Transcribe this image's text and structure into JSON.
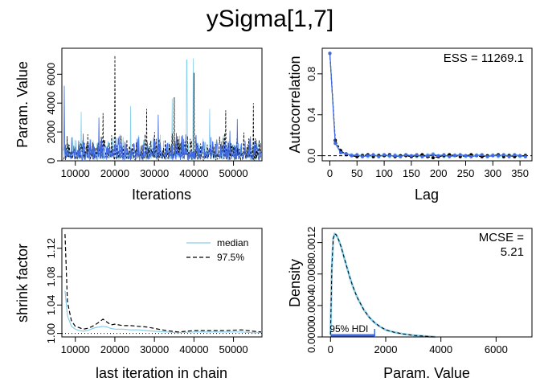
{
  "title": "ySigma[1,7]",
  "colors": {
    "chain1": "#87CEEB",
    "chain2": "#000000",
    "chain3": "#4169E1",
    "axis": "#000000",
    "hdi": "#4169E1"
  },
  "chart_data": [
    {
      "panel": "trace",
      "type": "line",
      "xlabel": "Iterations",
      "ylabel": "Param. Value",
      "x_ticks": [
        10000,
        20000,
        30000,
        40000,
        50000
      ],
      "y_ticks": [
        0,
        2000,
        4000,
        6000
      ],
      "xlim": [
        6600,
        57200
      ],
      "ylim": [
        0,
        7800
      ],
      "x_range": [
        7000,
        57000
      ],
      "series": [
        {
          "color": "#87CEEB",
          "spikes": [
            [
              38200,
              7000
            ],
            [
              39800,
              7100
            ],
            [
              34500,
              4300
            ],
            [
              24000,
              3800
            ],
            [
              11500,
              3400
            ],
            [
              44000,
              3600
            ]
          ]
        },
        {
          "color": "#000000",
          "spikes": [
            [
              20000,
              7300
            ],
            [
              40000,
              6100
            ],
            [
              35000,
              4400
            ],
            [
              55000,
              4000
            ],
            [
              48000,
              3500
            ],
            [
              17000,
              3300
            ],
            [
              28000,
              3600
            ]
          ]
        },
        {
          "color": "#4169E1",
          "spikes": [
            [
              7200,
              5200
            ],
            [
              16000,
              3000
            ],
            [
              31000,
              3200
            ],
            [
              51000,
              2900
            ]
          ]
        }
      ],
      "band_typical_max": 1900
    },
    {
      "panel": "autocorrelation",
      "type": "line",
      "xlabel": "Lag",
      "ylabel": "Autocorrelation",
      "annotation": "ESS = 11269.1",
      "x_ticks": [
        0,
        50,
        100,
        150,
        200,
        250,
        300,
        350
      ],
      "y_ticks": [
        0.0,
        0.4,
        0.8
      ],
      "y_tick_labels": [
        "0.0",
        "0.4",
        "0.8"
      ],
      "xlim": [
        -14,
        372
      ],
      "ylim": [
        -0.05,
        1.05
      ],
      "lags": [
        0,
        10,
        20,
        30,
        40,
        50,
        60,
        70,
        80,
        90,
        100,
        110,
        120,
        130,
        140,
        150,
        160,
        170,
        180,
        190,
        200,
        210,
        220,
        230,
        240,
        250,
        260,
        270,
        280,
        290,
        300,
        310,
        320,
        330,
        340,
        350,
        360
      ],
      "series": [
        {
          "color": "#87CEEB",
          "values": [
            1.0,
            0.13,
            0.04,
            0.02,
            0.01,
            0.0,
            0.01,
            -0.01,
            0.0,
            0.01,
            0.0,
            -0.01,
            0.01,
            0.0,
            0.01,
            0.0,
            -0.01,
            0.0,
            0.01,
            0.02,
            0.0,
            -0.01,
            0.0,
            0.01,
            0.0,
            -0.01,
            0.0,
            0.01,
            0.0,
            0.0,
            0.01,
            -0.01,
            0.0,
            0.01,
            0.0,
            -0.01,
            0.01
          ]
        },
        {
          "color": "#000000",
          "values": [
            1.0,
            0.15,
            0.05,
            0.01,
            0.0,
            -0.01,
            0.0,
            0.01,
            -0.01,
            0.0,
            0.0,
            0.01,
            -0.01,
            0.0,
            0.0,
            -0.01,
            0.0,
            0.01,
            -0.01,
            -0.02,
            -0.01,
            0.0,
            0.01,
            0.0,
            -0.01,
            0.0,
            0.01,
            0.0,
            -0.01,
            0.0,
            0.0,
            0.01,
            -0.01,
            0.0,
            -0.01,
            0.0,
            0.0
          ]
        },
        {
          "color": "#4169E1",
          "values": [
            1.0,
            0.12,
            0.03,
            0.02,
            0.0,
            0.01,
            -0.01,
            0.0,
            0.01,
            -0.01,
            0.01,
            0.0,
            0.0,
            -0.01,
            0.01,
            0.0,
            0.01,
            -0.01,
            0.0,
            0.01,
            0.0,
            0.01,
            -0.01,
            0.0,
            0.01,
            0.0,
            -0.01,
            0.0,
            0.01,
            -0.01,
            0.0,
            0.0,
            0.01,
            -0.01,
            0.01,
            0.0,
            -0.01
          ]
        }
      ]
    },
    {
      "panel": "shrink",
      "type": "line",
      "xlabel": "last iteration in chain",
      "ylabel": "shrink factor",
      "x_ticks": [
        10000,
        20000,
        30000,
        40000,
        50000
      ],
      "y_ticks": [
        1.0,
        1.04,
        1.08,
        1.12
      ],
      "y_tick_labels": [
        "1.00",
        "1.04",
        "1.08",
        "1.12"
      ],
      "xlim": [
        6600,
        57200
      ],
      "ylim": [
        0.995,
        1.148
      ],
      "legend": {
        "position": "top-right",
        "entries": [
          {
            "label": "median",
            "color": "#87CEEB",
            "dash": "solid"
          },
          {
            "label": "97.5%",
            "color": "#000000",
            "dash": "dashed"
          }
        ]
      },
      "x": [
        7400,
        8000,
        9000,
        10000,
        11000,
        12000,
        13000,
        14000,
        15000,
        16000,
        17000,
        18000,
        19000,
        20000,
        22000,
        24000,
        26000,
        28000,
        30000,
        33000,
        36000,
        40000,
        44000,
        48000,
        52000,
        55000,
        57000
      ],
      "series": [
        {
          "name": "median",
          "values": [
            1.06,
            1.025,
            1.01,
            1.006,
            1.004,
            1.003,
            1.004,
            1.006,
            1.008,
            1.009,
            1.01,
            1.009,
            1.007,
            1.006,
            1.006,
            1.005,
            1.005,
            1.004,
            1.003,
            1.002,
            1.001,
            1.002,
            1.002,
            1.002,
            1.002,
            1.001,
            1.001
          ]
        },
        {
          "name": "97.5%",
          "values": [
            1.14,
            1.045,
            1.018,
            1.01,
            1.008,
            1.006,
            1.007,
            1.009,
            1.012,
            1.016,
            1.02,
            1.016,
            1.012,
            1.013,
            1.011,
            1.011,
            1.01,
            1.009,
            1.007,
            1.004,
            1.002,
            1.004,
            1.004,
            1.004,
            1.005,
            1.003,
            1.002
          ]
        }
      ]
    },
    {
      "panel": "density",
      "type": "area",
      "xlabel": "Param. Value",
      "ylabel": "Density",
      "annotation_label": "MCSE =",
      "annotation_value": "5.21",
      "hdi_label": "95% HDI",
      "hdi": [
        0,
        1600
      ],
      "x_ticks": [
        0,
        2000,
        4000,
        6000
      ],
      "y_ticks": [
        0.0,
        0.0004,
        0.0008,
        0.0012
      ],
      "y_tick_labels": [
        "0.0000",
        "0.0004",
        "0.0008",
        "0.0012"
      ],
      "xlim": [
        -300,
        7300
      ],
      "ylim": [
        0,
        0.00138
      ],
      "x": [
        0,
        50,
        100,
        150,
        200,
        250,
        300,
        400,
        500,
        600,
        700,
        800,
        900,
        1000,
        1200,
        1400,
        1600,
        1800,
        2000,
        2300,
        2600,
        3000,
        3400,
        3800
      ],
      "series": [
        {
          "color": "#87CEEB",
          "values": [
            3e-05,
            0.0009,
            0.00125,
            0.00131,
            0.0013,
            0.00127,
            0.00123,
            0.00113,
            0.001,
            0.00088,
            0.00076,
            0.00065,
            0.00056,
            0.00048,
            0.00035,
            0.00025,
            0.00018,
            0.00013,
            9e-05,
            6e-05,
            4e-05,
            2e-05,
            1e-05,
            0.0
          ]
        },
        {
          "color": "#000000",
          "values": [
            3e-05,
            0.0009,
            0.00125,
            0.00131,
            0.0013,
            0.00127,
            0.00123,
            0.00113,
            0.001,
            0.00088,
            0.00076,
            0.00065,
            0.00056,
            0.00048,
            0.00035,
            0.00025,
            0.00018,
            0.00013,
            9e-05,
            6e-05,
            4e-05,
            2e-05,
            1e-05,
            0.0
          ]
        }
      ]
    }
  ]
}
